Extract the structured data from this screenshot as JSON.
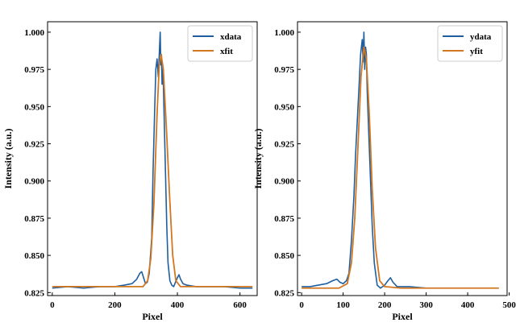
{
  "chart_data": [
    {
      "type": "line",
      "xlabel": "Pixel",
      "ylabel": "Intensity (a.u.)",
      "xlim": [
        -15,
        655
      ],
      "ylim": [
        0.823,
        1.007
      ],
      "xticks": [
        0,
        200,
        400,
        600
      ],
      "yticks": [
        0.825,
        0.85,
        0.875,
        0.9,
        0.925,
        0.95,
        0.975,
        1.0
      ],
      "ytick_labels": [
        "0.825",
        "0.850",
        "0.875",
        "0.900",
        "0.925",
        "0.950",
        "0.975",
        "1.000"
      ],
      "legend_position": "top-right",
      "colors": {
        "data": "#1f5f9f",
        "fit": "#d2761f"
      },
      "series": [
        {
          "name": "xdata",
          "kind": "data",
          "x": [
            0,
            50,
            100,
            150,
            200,
            230,
            255,
            270,
            280,
            286,
            292,
            298,
            304,
            310,
            318,
            322,
            327,
            331,
            335,
            339,
            343,
            345,
            347,
            349,
            351,
            354,
            358,
            362,
            366,
            370,
            376,
            382,
            388,
            394,
            400,
            405,
            410,
            418,
            430,
            460,
            500,
            550,
            600,
            640
          ],
          "y": [
            0.828,
            0.829,
            0.828,
            0.829,
            0.829,
            0.83,
            0.831,
            0.834,
            0.838,
            0.839,
            0.835,
            0.831,
            0.832,
            0.838,
            0.862,
            0.905,
            0.945,
            0.975,
            0.982,
            0.97,
            0.99,
            1.0,
            0.978,
            0.985,
            0.965,
            0.975,
            0.94,
            0.905,
            0.87,
            0.845,
            0.833,
            0.83,
            0.829,
            0.832,
            0.835,
            0.837,
            0.834,
            0.831,
            0.83,
            0.829,
            0.829,
            0.829,
            0.828,
            0.828
          ]
        },
        {
          "name": "xfit",
          "kind": "fit",
          "x": [
            0,
            100,
            200,
            260,
            290,
            305,
            315,
            325,
            335,
            342,
            348,
            355,
            365,
            375,
            385,
            395,
            410,
            450,
            550,
            640
          ],
          "y": [
            0.829,
            0.829,
            0.829,
            0.829,
            0.829,
            0.833,
            0.848,
            0.885,
            0.945,
            0.978,
            0.985,
            0.975,
            0.935,
            0.89,
            0.85,
            0.833,
            0.829,
            0.829,
            0.829,
            0.829
          ]
        }
      ]
    },
    {
      "type": "line",
      "xlabel": "Pixel",
      "ylabel": "Intensity (a.u.)",
      "xlim": [
        -10,
        495
      ],
      "ylim": [
        0.823,
        1.007
      ],
      "xticks": [
        0,
        100,
        200,
        300,
        400,
        500
      ],
      "yticks": [
        0.825,
        0.85,
        0.875,
        0.9,
        0.925,
        0.95,
        0.975,
        1.0
      ],
      "ytick_labels": [
        "0.825",
        "0.850",
        "0.875",
        "0.900",
        "0.925",
        "0.950",
        "0.975",
        "1.000"
      ],
      "legend_position": "top-right",
      "colors": {
        "data": "#1f5f9f",
        "fit": "#d2761f"
      },
      "series": [
        {
          "name": "ydata",
          "kind": "data",
          "x": [
            0,
            20,
            40,
            60,
            75,
            85,
            92,
            100,
            108,
            114,
            120,
            126,
            130,
            134,
            138,
            142,
            146,
            148,
            150,
            152,
            154,
            156,
            158,
            162,
            166,
            170,
            175,
            182,
            190,
            200,
            208,
            214,
            220,
            230,
            260,
            300,
            350,
            400,
            450,
            475
          ],
          "y": [
            0.829,
            0.829,
            0.83,
            0.831,
            0.833,
            0.834,
            0.832,
            0.831,
            0.833,
            0.838,
            0.86,
            0.89,
            0.918,
            0.94,
            0.962,
            0.985,
            0.995,
            0.98,
            1.0,
            0.975,
            0.99,
            0.985,
            0.96,
            0.93,
            0.9,
            0.87,
            0.845,
            0.83,
            0.828,
            0.83,
            0.833,
            0.835,
            0.832,
            0.829,
            0.829,
            0.828,
            0.828,
            0.828,
            0.828,
            0.828
          ]
        },
        {
          "name": "yfit",
          "kind": "fit",
          "x": [
            0,
            50,
            90,
            110,
            120,
            128,
            136,
            143,
            150,
            156,
            163,
            170,
            178,
            188,
            200,
            240,
            300,
            400,
            475
          ],
          "y": [
            0.828,
            0.828,
            0.828,
            0.831,
            0.845,
            0.875,
            0.925,
            0.97,
            0.99,
            0.982,
            0.945,
            0.895,
            0.855,
            0.833,
            0.829,
            0.828,
            0.828,
            0.828,
            0.828
          ]
        }
      ]
    }
  ]
}
